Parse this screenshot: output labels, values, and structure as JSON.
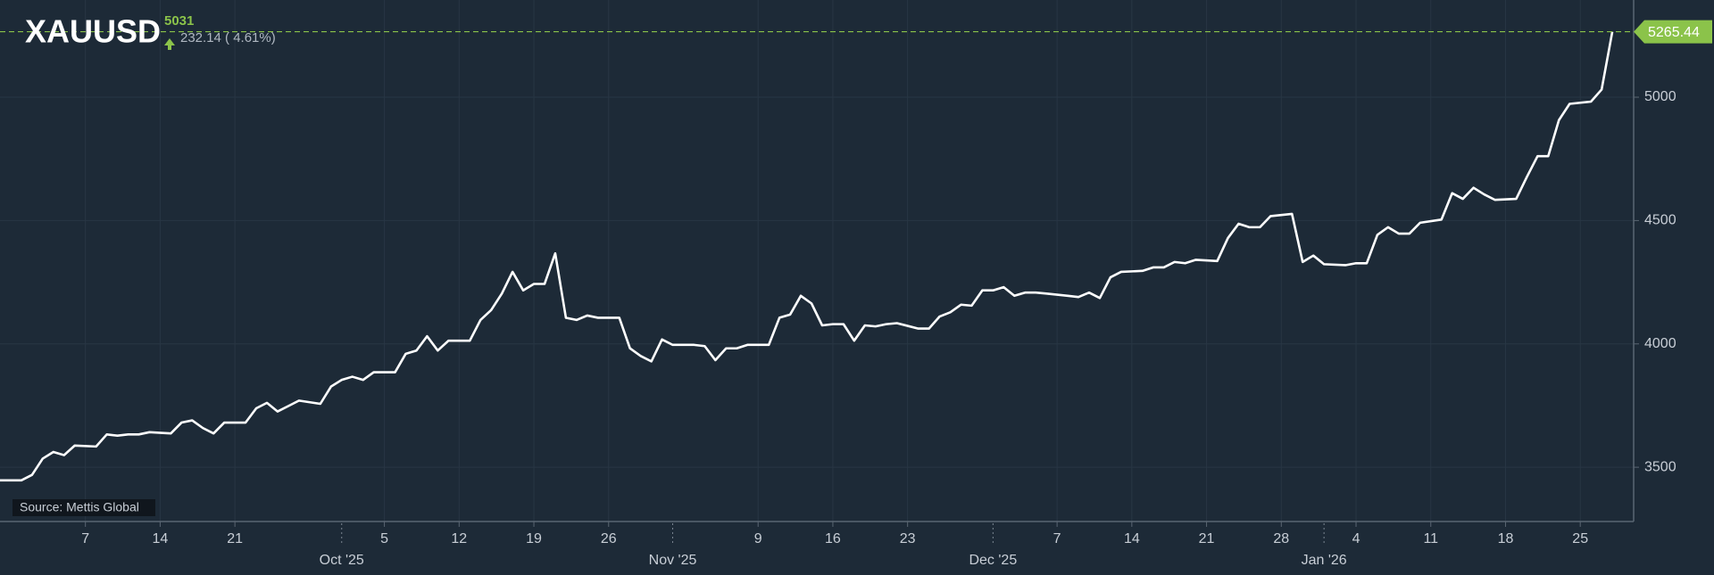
{
  "chart_data": {
    "type": "line",
    "title": "XAUUSD",
    "change": "232.14 ( 4.61%)",
    "source": "Source: Mettis Global",
    "grid": true,
    "xlim": [
      "2025-08-30",
      "2026-01-30"
    ],
    "ylim": [
      3280,
      5394
    ],
    "yticks": [
      3500,
      4000,
      4500,
      5000
    ],
    "xticks": [
      {
        "value": "2025-09-07",
        "label": "7"
      },
      {
        "value": "2025-09-14",
        "label": "14"
      },
      {
        "value": "2025-09-21",
        "label": "21"
      },
      {
        "value": "2025-10-01",
        "label": "Oct '25"
      },
      {
        "value": "2025-10-05",
        "label": "5"
      },
      {
        "value": "2025-10-12",
        "label": "12"
      },
      {
        "value": "2025-10-19",
        "label": "19"
      },
      {
        "value": "2025-10-26",
        "label": "26"
      },
      {
        "value": "2025-11-01",
        "label": "Nov '25"
      },
      {
        "value": "2025-11-09",
        "label": "9"
      },
      {
        "value": "2025-11-16",
        "label": "16"
      },
      {
        "value": "2025-11-23",
        "label": "23"
      },
      {
        "value": "2025-12-01",
        "label": "Dec '25"
      },
      {
        "value": "2025-12-07",
        "label": "7"
      },
      {
        "value": "2025-12-14",
        "label": "14"
      },
      {
        "value": "2025-12-21",
        "label": "21"
      },
      {
        "value": "2025-12-28",
        "label": "28"
      },
      {
        "value": "2026-01-01",
        "label": "Jan '26"
      },
      {
        "value": "2026-01-04",
        "label": "4"
      },
      {
        "value": "2026-01-11",
        "label": "11"
      },
      {
        "value": "2026-01-18",
        "label": "18"
      },
      {
        "value": "2026-01-25",
        "label": "25"
      }
    ],
    "x": [
      "2025-08-30",
      "2025-09-01",
      "2025-09-02",
      "2025-09-03",
      "2025-09-04",
      "2025-09-05",
      "2025-09-06",
      "2025-09-08",
      "2025-09-09",
      "2025-09-10",
      "2025-09-11",
      "2025-09-12",
      "2025-09-13",
      "2025-09-15",
      "2025-09-16",
      "2025-09-17",
      "2025-09-18",
      "2025-09-19",
      "2025-09-20",
      "2025-09-22",
      "2025-09-23",
      "2025-09-24",
      "2025-09-25",
      "2025-09-26",
      "2025-09-27",
      "2025-09-29",
      "2025-09-30",
      "2025-10-01",
      "2025-10-02",
      "2025-10-03",
      "2025-10-04",
      "2025-10-06",
      "2025-10-07",
      "2025-10-08",
      "2025-10-09",
      "2025-10-10",
      "2025-10-11",
      "2025-10-13",
      "2025-10-14",
      "2025-10-15",
      "2025-10-16",
      "2025-10-17",
      "2025-10-18",
      "2025-10-19",
      "2025-10-20",
      "2025-10-21",
      "2025-10-22",
      "2025-10-23",
      "2025-10-24",
      "2025-10-25",
      "2025-10-27",
      "2025-10-28",
      "2025-10-29",
      "2025-10-30",
      "2025-10-31",
      "2025-11-01",
      "2025-11-03",
      "2025-11-04",
      "2025-11-05",
      "2025-11-06",
      "2025-11-07",
      "2025-11-08",
      "2025-11-10",
      "2025-11-11",
      "2025-11-12",
      "2025-11-13",
      "2025-11-14",
      "2025-11-15",
      "2025-11-16",
      "2025-11-17",
      "2025-11-18",
      "2025-11-19",
      "2025-11-20",
      "2025-11-21",
      "2025-11-22",
      "2025-11-24",
      "2025-11-25",
      "2025-11-26",
      "2025-11-27",
      "2025-11-28",
      "2025-11-29",
      "2025-11-30",
      "2025-12-01",
      "2025-12-02",
      "2025-12-03",
      "2025-12-04",
      "2025-12-05",
      "2025-12-06",
      "2025-12-08",
      "2025-12-09",
      "2025-12-10",
      "2025-12-11",
      "2025-12-12",
      "2025-12-13",
      "2025-12-15",
      "2025-12-16",
      "2025-12-17",
      "2025-12-18",
      "2025-12-19",
      "2025-12-20",
      "2025-12-22",
      "2025-12-23",
      "2025-12-24",
      "2025-12-25",
      "2025-12-26",
      "2025-12-27",
      "2025-12-29",
      "2025-12-30",
      "2025-12-31",
      "2026-01-01",
      "2026-01-03",
      "2026-01-04",
      "2026-01-05",
      "2026-01-06",
      "2026-01-07",
      "2026-01-08",
      "2026-01-09",
      "2026-01-10",
      "2026-01-12",
      "2026-01-13",
      "2026-01-14",
      "2026-01-15",
      "2026-01-16",
      "2026-01-17",
      "2026-01-19",
      "2026-01-20",
      "2026-01-21",
      "2026-01-22",
      "2026-01-23",
      "2026-01-24",
      "2026-01-26",
      "2026-01-27",
      "2026-01-28"
    ],
    "series": [
      {
        "name": "XAUUSD",
        "color": "#ffffff",
        "values": [
          3447,
          3447,
          3469,
          3535,
          3562,
          3549,
          3588,
          3584,
          3633,
          3628,
          3633,
          3633,
          3642,
          3637,
          3681,
          3690,
          3659,
          3637,
          3681,
          3681,
          3739,
          3761,
          3726,
          3748,
          3770,
          3757,
          3827,
          3854,
          3867,
          3854,
          3885,
          3885,
          3960,
          3973,
          4031,
          3973,
          4013,
          4013,
          4097,
          4137,
          4204,
          4292,
          4217,
          4243,
          4243,
          4367,
          4106,
          4097,
          4115,
          4106,
          4106,
          3982,
          3951,
          3929,
          4018,
          3996,
          3996,
          3991,
          3934,
          3982,
          3982,
          3996,
          3996,
          4106,
          4119,
          4195,
          4164,
          4075,
          4080,
          4080,
          4013,
          4075,
          4071,
          4080,
          4084,
          4062,
          4062,
          4111,
          4128,
          4159,
          4155,
          4217,
          4217,
          4230,
          4195,
          4208,
          4208,
          4204,
          4195,
          4190,
          4208,
          4186,
          4270,
          4292,
          4296,
          4310,
          4310,
          4332,
          4327,
          4341,
          4336,
          4429,
          4487,
          4473,
          4473,
          4518,
          4527,
          4332,
          4358,
          4323,
          4319,
          4327,
          4327,
          4442,
          4473,
          4447,
          4447,
          4491,
          4504,
          4611,
          4588,
          4633,
          4606,
          4584,
          4588,
          4677,
          4761,
          4761,
          4907,
          4973,
          4982,
          5031,
          5265.44
        ]
      }
    ],
    "price_color": "#8bc34a"
  }
}
